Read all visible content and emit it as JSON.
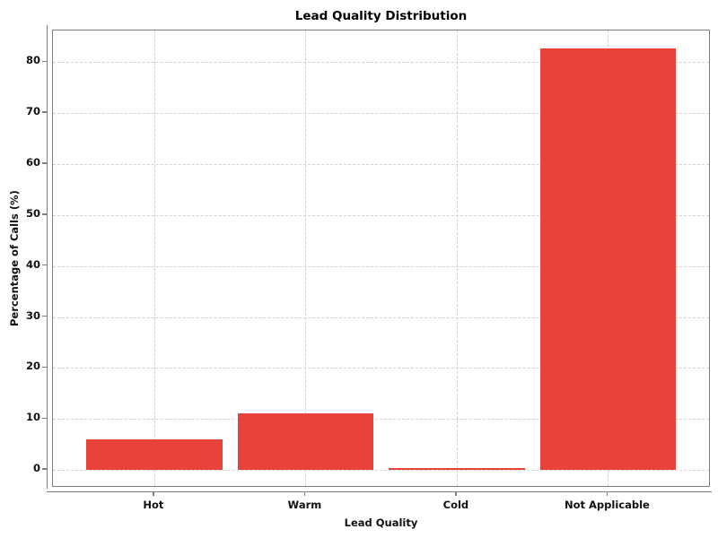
{
  "chart_data": {
    "type": "bar",
    "title": "Lead Quality Distribution",
    "xlabel": "Lead Quality",
    "ylabel": "Percentage of Calls (%)",
    "categories": [
      "Hot",
      "Warm",
      "Cold",
      "Not Applicable"
    ],
    "values": [
      6.0,
      11.1,
      0.3,
      82.6
    ],
    "yticks": [
      0,
      10,
      20,
      30,
      40,
      50,
      60,
      70,
      80
    ],
    "ylim": [
      -3.5,
      86.2
    ],
    "grid": "both-dashed",
    "legend_position": "none",
    "bar_color": "#e8433a",
    "grid_color": "#d2d2d2",
    "spine_color": "#7f7f7f",
    "background_color": "#ffffff"
  }
}
